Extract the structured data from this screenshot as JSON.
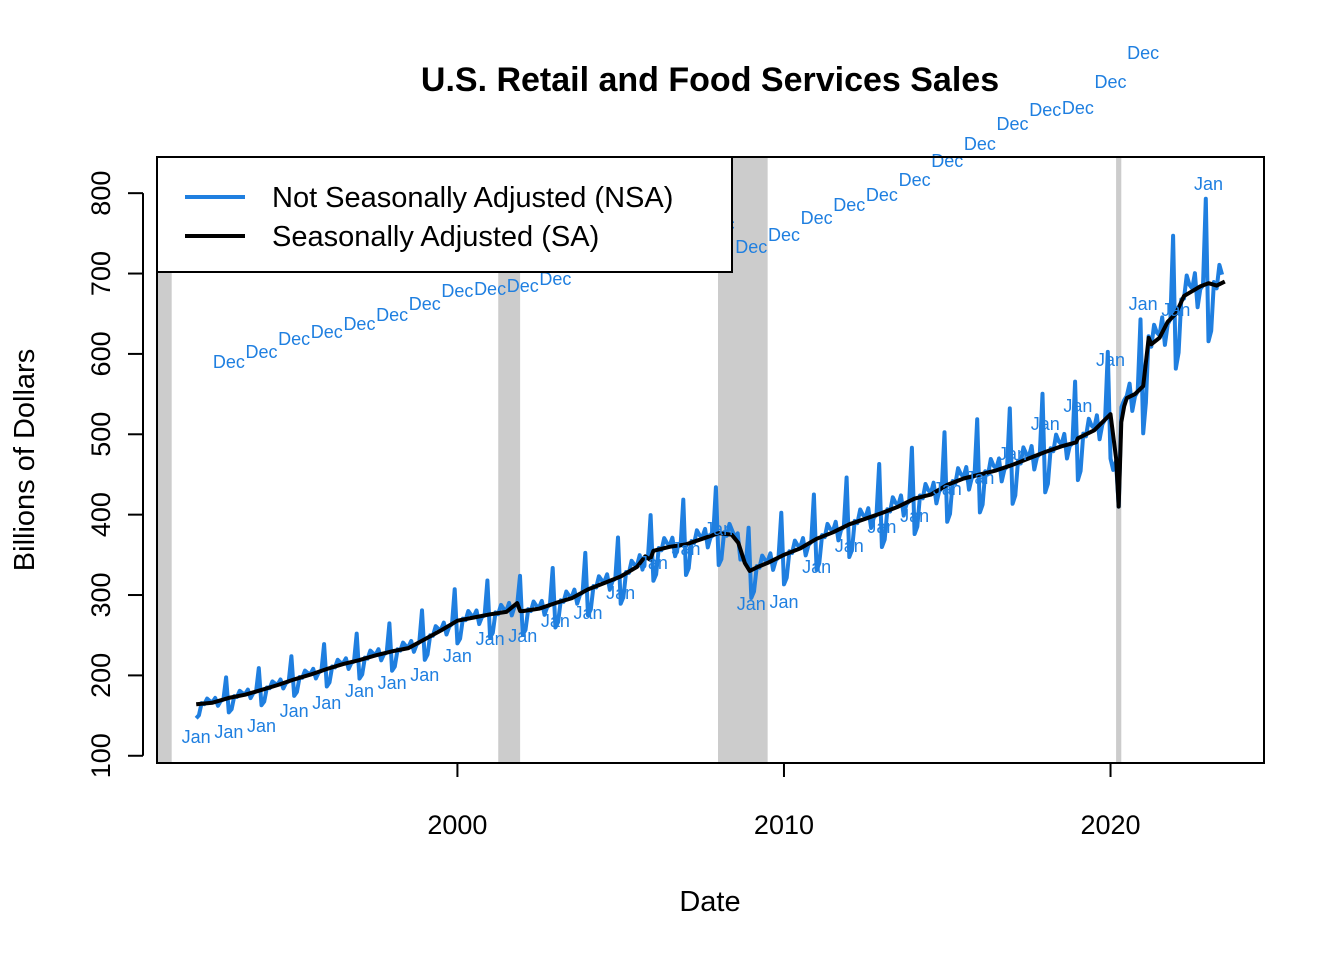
{
  "chart_data": {
    "type": "line",
    "title": "U.S. Retail and Food Services Sales",
    "xlabel": "Date",
    "ylabel": "Billions of Dollars",
    "xlim": [
      1990.8,
      2024.7
    ],
    "ylim": [
      91,
      845
    ],
    "x_ticks": [
      2000,
      2010,
      2020
    ],
    "x_tick_labels": [
      "2000",
      "2010",
      "2020"
    ],
    "y_ticks": [
      100,
      200,
      300,
      400,
      500,
      600,
      700,
      800
    ],
    "y_tick_labels": [
      "100",
      "200",
      "300",
      "400",
      "500",
      "600",
      "700",
      "800"
    ],
    "legend": {
      "position": "top-left",
      "entries": [
        {
          "label": "Not Seasonally Adjusted (NSA)",
          "color": "#1f7fe0"
        },
        {
          "label": "Seasonally Adjusted (SA)",
          "color": "#000000"
        }
      ]
    },
    "recessions": [
      {
        "start": 1990.6,
        "end": 1991.25
      },
      {
        "start": 2001.25,
        "end": 2001.92
      },
      {
        "start": 2007.98,
        "end": 2009.5
      },
      {
        "start": 2020.17,
        "end": 2020.33
      }
    ],
    "recession_color": "#cccccc",
    "sa_series": {
      "name": "Seasonally Adjusted (SA)",
      "color": "#000000",
      "x": [
        1992.0,
        1992.5,
        1993.0,
        1993.5,
        1994.0,
        1994.5,
        1995.0,
        1995.5,
        1996.0,
        1996.5,
        1997.0,
        1997.5,
        1998.0,
        1998.5,
        1999.0,
        1999.5,
        2000.0,
        2000.5,
        2001.0,
        2001.5,
        2001.83,
        2001.92,
        2002.0,
        2002.5,
        2003.0,
        2003.5,
        2004.0,
        2004.5,
        2005.0,
        2005.5,
        2005.75,
        2005.9,
        2006.0,
        2006.5,
        2007.0,
        2007.5,
        2008.0,
        2008.4,
        2008.6,
        2008.8,
        2008.95,
        2009.2,
        2009.5,
        2010.0,
        2010.5,
        2011.0,
        2011.5,
        2012.0,
        2012.5,
        2013.0,
        2013.5,
        2014.0,
        2014.5,
        2015.0,
        2015.5,
        2016.0,
        2016.5,
        2017.0,
        2017.5,
        2018.0,
        2018.5,
        2018.95,
        2019.0,
        2019.5,
        2020.0,
        2020.17,
        2020.25,
        2020.33,
        2020.42,
        2020.5,
        2020.75,
        2021.0,
        2021.17,
        2021.25,
        2021.5,
        2021.75,
        2022.0,
        2022.25,
        2022.5,
        2022.75,
        2023.0,
        2023.25,
        2023.5
      ],
      "values": [
        164,
        166,
        172,
        176,
        182,
        188,
        195,
        201,
        208,
        214,
        219,
        225,
        230,
        234,
        245,
        256,
        268,
        272,
        276,
        279,
        290,
        280,
        280,
        283,
        290,
        296,
        307,
        315,
        323,
        335,
        348,
        344,
        355,
        360,
        363,
        370,
        377,
        375,
        365,
        340,
        330,
        335,
        340,
        350,
        358,
        370,
        378,
        388,
        395,
        402,
        410,
        420,
        425,
        437,
        445,
        450,
        455,
        462,
        470,
        478,
        485,
        490,
        495,
        505,
        525,
        470,
        410,
        515,
        535,
        545,
        550,
        560,
        620,
        612,
        620,
        640,
        650,
        672,
        678,
        684,
        688,
        685,
        690
      ]
    },
    "nsa_series": {
      "name": "Not Seasonally Adjusted (NSA)",
      "color": "#1f7fe0",
      "note": "Monthly NSA values: seasonal pattern around the SA trend (January lows, December highs)."
    },
    "month_labels": {
      "color": "#1f7fe0",
      "dec": [
        {
          "x": 1993.0,
          "y": 632,
          "text": "Dec"
        },
        {
          "x": 1994.0,
          "y": 642,
          "text": "Dec"
        },
        {
          "x": 1995.0,
          "y": 655,
          "text": "Dec"
        },
        {
          "x": 1996.0,
          "y": 662,
          "text": "Dec"
        },
        {
          "x": 1997.0,
          "y": 670,
          "text": "Dec"
        },
        {
          "x": 1998.0,
          "y": 679,
          "text": "Dec"
        },
        {
          "x": 1999.0,
          "y": 690,
          "text": "Dec"
        },
        {
          "x": 2000.0,
          "y": 703,
          "text": "Dec"
        },
        {
          "x": 2001.0,
          "y": 705,
          "text": "Dec"
        },
        {
          "x": 2002.0,
          "y": 708,
          "text": "Dec"
        },
        {
          "x": 2003.0,
          "y": 715,
          "text": "Dec"
        },
        {
          "x": 2004.0,
          "y": 731,
          "text": "Dec"
        },
        {
          "x": 2005.0,
          "y": 749,
          "text": "Dec"
        },
        {
          "x": 2006.0,
          "y": 763,
          "text": "Dec"
        },
        {
          "x": 2007.0,
          "y": 768,
          "text": "Dec"
        },
        {
          "x": 2008.0,
          "y": 770,
          "text": "Dec"
        },
        {
          "x": 2009.0,
          "y": 747,
          "text": "Dec"
        },
        {
          "x": 2010.0,
          "y": 759,
          "text": "Dec"
        },
        {
          "x": 2011.0,
          "y": 776,
          "text": "Dec"
        },
        {
          "x": 2012.0,
          "y": 789,
          "text": "Dec"
        },
        {
          "x": 2013.0,
          "y": 799,
          "text": "Dec"
        },
        {
          "x": 2014.0,
          "y": 814,
          "text": "Dec"
        },
        {
          "x": 2015.0,
          "y": 833,
          "text": "Dec"
        },
        {
          "x": 2016.0,
          "y": 850,
          "text": "Dec"
        },
        {
          "x": 2017.0,
          "y": 870,
          "text": "Dec"
        },
        {
          "x": 2018.0,
          "y": 884,
          "text": "Dec"
        },
        {
          "x": 2019.0,
          "y": 886,
          "text": "Dec"
        },
        {
          "x": 2020.0,
          "y": 912,
          "text": "Dec"
        },
        {
          "x": 2021.0,
          "y": 941,
          "text": "Dec"
        },
        {
          "x": 2022.0,
          "y": 1017,
          "text": "Dec"
        },
        {
          "x": 2023.0,
          "y": 1047,
          "text": "Dec"
        }
      ],
      "jan": [
        {
          "x": 1992.0,
          "y": 487,
          "text": "Jan"
        },
        {
          "x": 1993.0,
          "y": 492,
          "text": "Jan"
        },
        {
          "x": 1994.0,
          "y": 498,
          "text": "Jan"
        },
        {
          "x": 1995.0,
          "y": 513,
          "text": "Jan"
        },
        {
          "x": 1996.0,
          "y": 521,
          "text": "Jan"
        },
        {
          "x": 1997.0,
          "y": 533,
          "text": "Jan"
        },
        {
          "x": 1998.0,
          "y": 541,
          "text": "Jan"
        },
        {
          "x": 1999.0,
          "y": 549,
          "text": "Jan"
        },
        {
          "x": 2000.0,
          "y": 568,
          "text": "Jan"
        },
        {
          "x": 2001.0,
          "y": 585,
          "text": "Jan"
        },
        {
          "x": 2002.0,
          "y": 588,
          "text": "Jan"
        },
        {
          "x": 2003.0,
          "y": 603,
          "text": "Jan"
        },
        {
          "x": 2004.0,
          "y": 611,
          "text": "Jan"
        },
        {
          "x": 2005.0,
          "y": 631,
          "text": "Jan"
        },
        {
          "x": 2006.0,
          "y": 661,
          "text": "Jan"
        },
        {
          "x": 2007.0,
          "y": 675,
          "text": "Jan"
        },
        {
          "x": 2008.0,
          "y": 695,
          "text": "Jan"
        },
        {
          "x": 2009.0,
          "y": 620,
          "text": "Jan"
        },
        {
          "x": 2010.0,
          "y": 622,
          "text": "Jan"
        },
        {
          "x": 2011.0,
          "y": 657,
          "text": "Jan"
        },
        {
          "x": 2012.0,
          "y": 678,
          "text": "Jan"
        },
        {
          "x": 2013.0,
          "y": 697,
          "text": "Jan"
        },
        {
          "x": 2014.0,
          "y": 708,
          "text": "Jan"
        },
        {
          "x": 2015.0,
          "y": 735,
          "text": "Jan"
        },
        {
          "x": 2016.0,
          "y": 746,
          "text": "Jan"
        },
        {
          "x": 2017.0,
          "y": 770,
          "text": "Jan"
        },
        {
          "x": 2018.0,
          "y": 800,
          "text": "Jan"
        },
        {
          "x": 2019.0,
          "y": 818,
          "text": "Jan"
        },
        {
          "x": 2020.0,
          "y": 864,
          "text": "Jan"
        },
        {
          "x": 2021.0,
          "y": 920,
          "text": "Jan"
        },
        {
          "x": 2022.0,
          "y": 914,
          "text": "Jan"
        },
        {
          "x": 2023.0,
          "y": 1040,
          "text": "Jan"
        }
      ]
    }
  }
}
